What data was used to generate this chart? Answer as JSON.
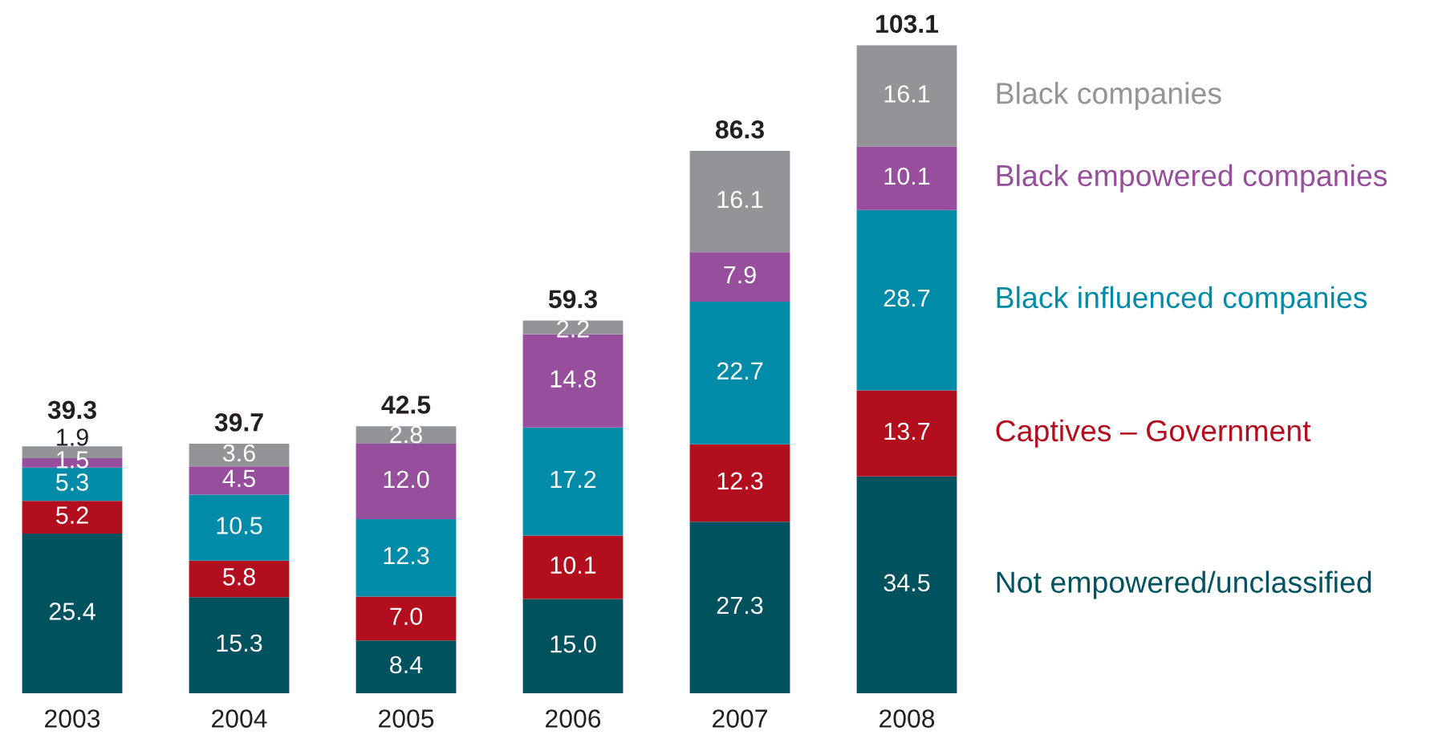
{
  "chart_data": {
    "type": "bar",
    "stacked": true,
    "categories": [
      "2003",
      "2004",
      "2005",
      "2006",
      "2007",
      "2008"
    ],
    "series": [
      {
        "name": "Not empowered/unclassified",
        "color": "#00525e",
        "values": [
          25.4,
          15.3,
          8.4,
          15.0,
          27.3,
          34.5
        ],
        "value_labels": [
          "25.4",
          "15.3",
          "8.4",
          "15.0",
          "27.3",
          "34.5"
        ]
      },
      {
        "name": "Captives – Government",
        "color": "#b20e1e",
        "values": [
          5.2,
          5.8,
          7.0,
          10.1,
          12.3,
          13.7
        ],
        "value_labels": [
          "5.2",
          "5.8",
          "7.0",
          "10.1",
          "12.3",
          "13.7"
        ]
      },
      {
        "name": "Black influenced companies",
        "color": "#008ca8",
        "values": [
          5.3,
          10.5,
          12.3,
          17.2,
          22.7,
          28.7
        ],
        "value_labels": [
          "5.3",
          "10.5",
          "12.3",
          "17.2",
          "22.7",
          "28.7"
        ]
      },
      {
        "name": "Black empowered companies",
        "color": "#974e9c",
        "values": [
          1.5,
          4.5,
          12.0,
          14.8,
          7.9,
          10.1
        ],
        "value_labels": [
          "1.5",
          "4.5",
          "12.0",
          "14.8",
          "7.9",
          "10.1"
        ]
      },
      {
        "name": "Black companies",
        "color": "#929497",
        "values": [
          1.9,
          3.6,
          2.8,
          2.2,
          16.1,
          16.1
        ],
        "value_labels": [
          "1.9",
          "3.6",
          "2.8",
          "2.2",
          "16.1",
          "16.1"
        ]
      }
    ],
    "totals": [
      "39.3",
      "39.7",
      "42.5",
      "59.3",
      "86.3",
      "103.1"
    ]
  }
}
